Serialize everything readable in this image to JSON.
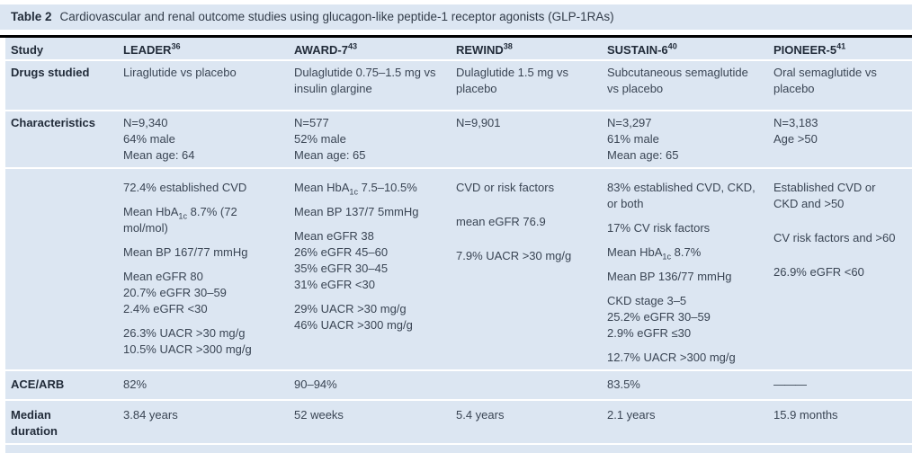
{
  "title": {
    "label": "Table 2",
    "text": "Cardiovascular and renal outcome studies using glucagon-like peptide-1 receptor agonists (GLP-1RAs)"
  },
  "colors": {
    "row_background": "#dce6f2",
    "body_text": "#3a4554",
    "heading_text": "#222c3a",
    "top_rule": "#000000",
    "row_separator": "#ffffff"
  },
  "table": {
    "header": {
      "row_label": "Study",
      "columns": [
        "LEADER^36^",
        "AWARD-7^43^",
        "REWIND^38^",
        "SUSTAIN-6^40^",
        "PIONEER-5^41^"
      ]
    },
    "rows": [
      {
        "name": "drugs-studied",
        "label": "Drugs studied",
        "cells": [
          [
            "Liraglutide vs placebo"
          ],
          [
            "Dulaglutide 0.75–1.5 mg vs insulin glargine"
          ],
          [
            "Dulaglutide 1.5 mg vs placebo"
          ],
          [
            "Subcutaneous semaglutide vs placebo"
          ],
          [
            "Oral semaglutide vs placebo"
          ]
        ]
      },
      {
        "name": "characteristics",
        "label": "Characteristics",
        "cells": [
          [
            "N=9,340\n64% male\nMean age: 64"
          ],
          [
            "N=577\n52% male\nMean age: 65"
          ],
          [
            "N=9,901"
          ],
          [
            "N=3,297\n61% male\nMean age: 65"
          ],
          [
            "N=3,183\nAge >50"
          ]
        ]
      },
      {
        "name": "characteristics-detail",
        "label": "",
        "cells": [
          [
            "72.4% established CVD",
            "Mean HbA~1c~ 8.7% (72 mol/mol)",
            "Mean BP 167/77 mmHg",
            "Mean eGFR 80\n20.7% eGFR 30–59\n2.4% eGFR <30",
            "26.3% UACR >30 mg/g\n10.5% UACR >300 mg/g"
          ],
          [
            "Mean HbA~1c~ 7.5–10.5%",
            "Mean BP 137/7 5mmHg",
            "Mean eGFR 38\n26% eGFR 45–60\n35% eGFR 30–45\n31% eGFR <30",
            "29% UACR >30 mg/g\n46% UACR >300 mg/g"
          ],
          [
            "CVD or risk factors",
            "mean eGFR 76.9",
            "7.9% UACR >30 mg/g"
          ],
          [
            "83% established CVD, CKD, or both",
            "17% CV risk factors",
            "Mean HbA~1c~ 8.7%",
            "Mean BP 136/77 mmHg",
            "CKD stage 3–5\n25.2% eGFR 30–59\n2.9% eGFR ≤30",
            "12.7% UACR >300 mg/g"
          ],
          [
            "Established CVD or CKD and >50",
            "CV risk factors and >60",
            "26.9% eGFR <60"
          ]
        ]
      },
      {
        "name": "ace-arb",
        "label": "ACE/ARB",
        "cells": [
          [
            "82%"
          ],
          [
            "90–94%"
          ],
          [],
          [
            "83.5%"
          ],
          [
            "———"
          ]
        ]
      },
      {
        "name": "median-duration",
        "label": "Median\nduration",
        "cells": [
          [
            "3.84 years"
          ],
          [
            "52 weeks"
          ],
          [
            "5.4 years"
          ],
          [
            "2.1 years"
          ],
          [
            "15.9 months"
          ]
        ]
      }
    ]
  }
}
